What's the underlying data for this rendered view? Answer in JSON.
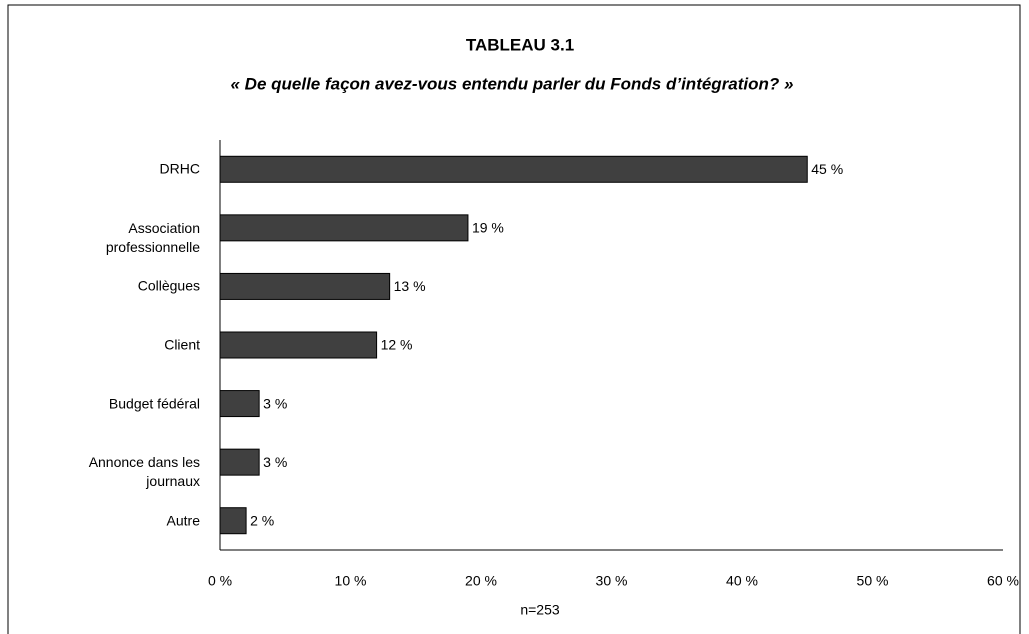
{
  "chart_data": {
    "type": "bar",
    "orientation": "horizontal",
    "title": "TABLEAU 3.1",
    "subtitle": "« De quelle façon avez-vous entendu parler du Fonds d’intégration? »",
    "xlabel": "n=253",
    "categories": [
      "DRHC",
      "Association\nprofessionnelle",
      "Collègues",
      "Client",
      "Budget fédéral",
      "Annonce dans les\njournaux",
      "Autre"
    ],
    "values": [
      45,
      19,
      13,
      12,
      3,
      3,
      2
    ],
    "value_labels": [
      "45 %",
      "19 %",
      "13 %",
      "12 %",
      "3 %",
      "3 %",
      "2 %"
    ],
    "color": "#404040",
    "xlim": [
      0,
      60
    ],
    "xticks": [
      {
        "value": 0,
        "label": "0 %"
      },
      {
        "value": 10,
        "label": "10 %"
      },
      {
        "value": 20,
        "label": "20 %"
      },
      {
        "value": 30,
        "label": "30 %"
      },
      {
        "value": 40,
        "label": "40 %"
      },
      {
        "value": 50,
        "label": "50 %"
      },
      {
        "value": 60,
        "label": "60 %"
      }
    ],
    "grid": false
  }
}
